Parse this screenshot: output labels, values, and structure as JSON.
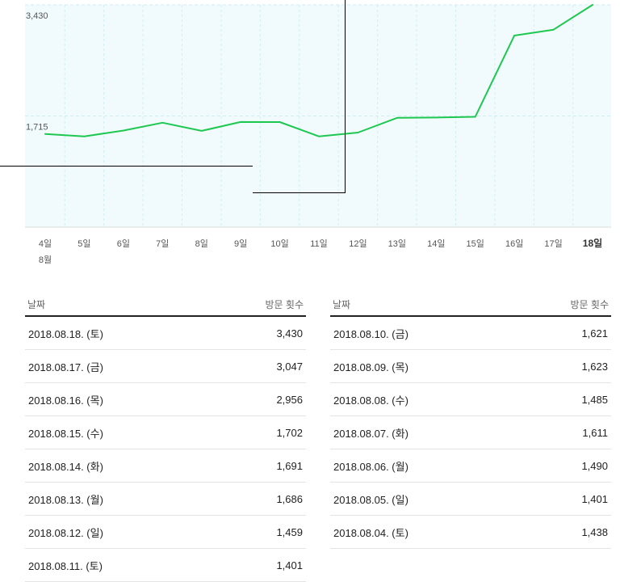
{
  "chart_data": {
    "type": "line",
    "title": "",
    "xlabel": "",
    "ylabel": "",
    "month_label": "8월",
    "categories": [
      "4일",
      "5일",
      "6일",
      "7일",
      "8일",
      "9일",
      "10일",
      "11일",
      "12일",
      "13일",
      "14일",
      "15일",
      "16일",
      "17일",
      "18일"
    ],
    "highlight_category": "18일",
    "y_ticks": [
      {
        "value": 3430,
        "label": "3,430"
      },
      {
        "value": 1715,
        "label": "1,715"
      }
    ],
    "ylim": [
      0,
      3430
    ],
    "series": [
      {
        "name": "방문 횟수",
        "color": "#1ec850",
        "values": [
          1438,
          1401,
          1490,
          1611,
          1485,
          1623,
          1621,
          1401,
          1459,
          1686,
          1691,
          1702,
          2956,
          3047,
          3430
        ]
      }
    ],
    "colors": {
      "line": "#1ec850",
      "plot_bg": "#f1fbfd",
      "grid": "#cfeef2"
    }
  },
  "table_left": {
    "header_date": "날짜",
    "header_value": "방문 횟수",
    "rows": [
      {
        "date": "2018.08.18. (토)",
        "value": "3,430"
      },
      {
        "date": "2018.08.17. (금)",
        "value": "3,047"
      },
      {
        "date": "2018.08.16. (목)",
        "value": "2,956"
      },
      {
        "date": "2018.08.15. (수)",
        "value": "1,702"
      },
      {
        "date": "2018.08.14. (화)",
        "value": "1,691"
      },
      {
        "date": "2018.08.13. (월)",
        "value": "1,686"
      },
      {
        "date": "2018.08.12. (일)",
        "value": "1,459"
      },
      {
        "date": "2018.08.11. (토)",
        "value": "1,401"
      }
    ]
  },
  "table_right": {
    "header_date": "날짜",
    "header_value": "방문 횟수",
    "rows": [
      {
        "date": "2018.08.10. (금)",
        "value": "1,621"
      },
      {
        "date": "2018.08.09. (목)",
        "value": "1,623"
      },
      {
        "date": "2018.08.08. (수)",
        "value": "1,485"
      },
      {
        "date": "2018.08.07. (화)",
        "value": "1,611"
      },
      {
        "date": "2018.08.06. (월)",
        "value": "1,490"
      },
      {
        "date": "2018.08.05. (일)",
        "value": "1,401"
      },
      {
        "date": "2018.08.04. (토)",
        "value": "1,438"
      }
    ]
  }
}
